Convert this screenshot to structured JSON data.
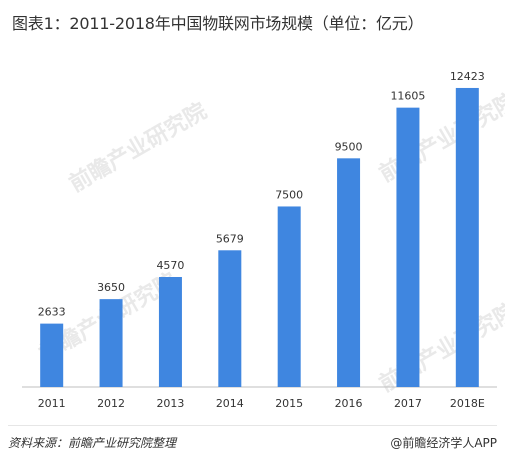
{
  "title": "图表1：2011-2018年中国物联网市场规模（单位：亿元）",
  "watermark": {
    "main": "前瞻产业研究院",
    "sub": ""
  },
  "source": "资料来源：前瞻产业研究院整理",
  "credit": "@前瞻经济学人APP",
  "colors": {
    "bar": "#3f86e0",
    "axis": "#bfbfbf"
  },
  "chart_data": {
    "type": "bar",
    "title": "图表1：2011-2018年中国物联网市场规模（单位：亿元）",
    "categories": [
      "2011",
      "2012",
      "2013",
      "2014",
      "2015",
      "2016",
      "2017",
      "2018E"
    ],
    "values": [
      2633,
      3650,
      4570,
      5679,
      7500,
      9500,
      11605,
      12423
    ],
    "data_labels": [
      "2633",
      "3650",
      "4570",
      "5679",
      "7500",
      "9500",
      "11605",
      "12423"
    ],
    "xlabel": "",
    "ylabel": "",
    "ylim": [
      0,
      14000
    ],
    "grid": false,
    "legend": "none"
  }
}
